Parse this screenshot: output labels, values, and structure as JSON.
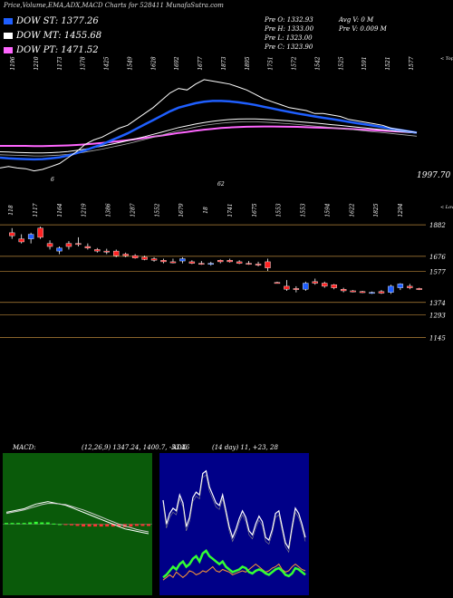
{
  "header": {
    "title": "Price,Volume,EMA,ADX,MACD Charts for 528411 MunafaSutra.com"
  },
  "legend": [
    {
      "label": "DOW ST: 1377.26",
      "color": "#1f5fff"
    },
    {
      "label": "DOW MT: 1455.68",
      "color": "#ffffff"
    },
    {
      "label": "DOW PT: 1471.52",
      "color": "#ff66ff"
    }
  ],
  "info": {
    "lines": [
      "Pre  O: 1332.93",
      "Pre  H: 1333.00",
      "Pre  L: 1323.00",
      "Pre  C: 1323.90"
    ],
    "lines2": [
      "Avg V: 0  M",
      "Pre  V: 0.009 M"
    ]
  },
  "colors": {
    "up": "#1f5fff",
    "down": "#ff2222",
    "ema_short": "#1f5fff",
    "ema_mid": "#ffffff",
    "ema_long": "#ff66ff",
    "grid": "#b8863b",
    "macd_bg": "#0a5a0a",
    "adx_bg": "#000088",
    "adx_plus": "#33ff33",
    "adx_minus": "#ff9933"
  },
  "chart_data": [
    {
      "type": "line",
      "name": "price-ema",
      "top_labels": [
        "1196",
        "1210",
        "1173",
        "1378",
        "1425",
        "1549",
        "1628",
        "1692",
        "1677",
        "1873",
        "1895",
        "1751",
        "1572",
        "1542",
        "1525",
        "1591",
        "1521",
        "1577"
      ],
      "bottom_labels": [
        "118",
        "1117",
        "1164",
        "1219",
        "1386",
        "1287",
        "1552",
        "1679",
        "18",
        "1741",
        "1675",
        "1553",
        "1553",
        "1594",
        "1622",
        "1825",
        "1294"
      ],
      "right_label": "1997.70",
      "axis_mark_left": "6",
      "axis_mark_mid": "62",
      "axis_note_top": "< Tops",
      "axis_note_bottom": "< Lows",
      "price": [
        1190,
        1200,
        1190,
        1185,
        1170,
        1180,
        1200,
        1220,
        1260,
        1300,
        1350,
        1380,
        1400,
        1430,
        1460,
        1480,
        1520,
        1560,
        1600,
        1650,
        1700,
        1730,
        1720,
        1760,
        1790,
        1780,
        1770,
        1760,
        1740,
        1720,
        1690,
        1660,
        1640,
        1620,
        1600,
        1590,
        1580,
        1560,
        1560,
        1550,
        1540,
        1520,
        1510,
        1500,
        1490,
        1480,
        1460,
        1450,
        1440,
        1430
      ],
      "ema_short": [
        1260,
        1255,
        1252,
        1250,
        1248,
        1250,
        1255,
        1262,
        1275,
        1290,
        1310,
        1330,
        1350,
        1375,
        1400,
        1425,
        1455,
        1485,
        1515,
        1545,
        1575,
        1600,
        1615,
        1630,
        1640,
        1645,
        1645,
        1642,
        1636,
        1628,
        1618,
        1606,
        1594,
        1582,
        1571,
        1560,
        1550,
        1540,
        1531,
        1522,
        1513,
        1503,
        1494,
        1485,
        1476,
        1467,
        1457,
        1448,
        1439,
        1430
      ],
      "ema_mid": [
        1300,
        1298,
        1296,
        1294,
        1292,
        1292,
        1294,
        1297,
        1302,
        1309,
        1318,
        1328,
        1338,
        1350,
        1362,
        1375,
        1389,
        1403,
        1418,
        1433,
        1449,
        1464,
        1476,
        1488,
        1499,
        1507,
        1514,
        1519,
        1522,
        1523,
        1523,
        1521,
        1518,
        1514,
        1510,
        1505,
        1500,
        1495,
        1490,
        1484,
        1479,
        1473,
        1467,
        1461,
        1455,
        1450,
        1444,
        1438,
        1432,
        1426
      ],
      "ema_long": [
        1340,
        1340,
        1340,
        1340,
        1339,
        1339,
        1340,
        1341,
        1343,
        1346,
        1350,
        1355,
        1360,
        1366,
        1372,
        1379,
        1386,
        1394,
        1402,
        1410,
        1419,
        1428,
        1435,
        1443,
        1450,
        1456,
        1461,
        1465,
        1468,
        1470,
        1471,
        1472,
        1472,
        1471,
        1470,
        1469,
        1467,
        1465,
        1463,
        1461,
        1458,
        1455,
        1452,
        1449,
        1446,
        1443,
        1440,
        1437,
        1434,
        1431
      ],
      "ylim": [
        1100,
        1900
      ]
    },
    {
      "type": "candlestick",
      "name": "candles",
      "y_ticks": [
        "1882",
        "1676",
        "1577",
        "1374",
        "1293",
        "1145"
      ],
      "y_tick_values": [
        1882,
        1676,
        1577,
        1374,
        1293,
        1145
      ],
      "candles": [
        {
          "o": 1830,
          "h": 1860,
          "l": 1790,
          "c": 1810,
          "up": false
        },
        {
          "o": 1790,
          "h": 1820,
          "l": 1760,
          "c": 1770,
          "up": false
        },
        {
          "o": 1790,
          "h": 1830,
          "l": 1760,
          "c": 1820,
          "up": true
        },
        {
          "o": 1860,
          "h": 1870,
          "l": 1790,
          "c": 1800,
          "up": false
        },
        {
          "o": 1760,
          "h": 1780,
          "l": 1720,
          "c": 1740,
          "up": false
        },
        {
          "o": 1710,
          "h": 1740,
          "l": 1690,
          "c": 1730,
          "up": true
        },
        {
          "o": 1760,
          "h": 1775,
          "l": 1720,
          "c": 1740,
          "up": false
        },
        {
          "o": 1760,
          "h": 1800,
          "l": 1740,
          "c": 1760,
          "up": false
        },
        {
          "o": 1740,
          "h": 1760,
          "l": 1720,
          "c": 1730,
          "up": false
        },
        {
          "o": 1720,
          "h": 1730,
          "l": 1700,
          "c": 1710,
          "up": false
        },
        {
          "o": 1710,
          "h": 1725,
          "l": 1690,
          "c": 1705,
          "up": false
        },
        {
          "o": 1710,
          "h": 1720,
          "l": 1670,
          "c": 1680,
          "up": false
        },
        {
          "o": 1690,
          "h": 1700,
          "l": 1670,
          "c": 1680,
          "up": false
        },
        {
          "o": 1680,
          "h": 1690,
          "l": 1660,
          "c": 1665,
          "up": false
        },
        {
          "o": 1670,
          "h": 1680,
          "l": 1650,
          "c": 1655,
          "up": false
        },
        {
          "o": 1660,
          "h": 1670,
          "l": 1640,
          "c": 1650,
          "up": false
        },
        {
          "o": 1650,
          "h": 1660,
          "l": 1630,
          "c": 1640,
          "up": false
        },
        {
          "o": 1640,
          "h": 1660,
          "l": 1630,
          "c": 1640,
          "up": false
        },
        {
          "o": 1645,
          "h": 1670,
          "l": 1630,
          "c": 1660,
          "up": true
        },
        {
          "o": 1640,
          "h": 1650,
          "l": 1625,
          "c": 1630,
          "up": false
        },
        {
          "o": 1630,
          "h": 1645,
          "l": 1620,
          "c": 1625,
          "up": false
        },
        {
          "o": 1625,
          "h": 1640,
          "l": 1615,
          "c": 1630,
          "up": true
        },
        {
          "o": 1640,
          "h": 1655,
          "l": 1630,
          "c": 1650,
          "up": false
        },
        {
          "o": 1650,
          "h": 1660,
          "l": 1635,
          "c": 1640,
          "up": false
        },
        {
          "o": 1640,
          "h": 1650,
          "l": 1625,
          "c": 1630,
          "up": false
        },
        {
          "o": 1630,
          "h": 1645,
          "l": 1620,
          "c": 1625,
          "up": false
        },
        {
          "o": 1625,
          "h": 1640,
          "l": 1610,
          "c": 1620,
          "up": false
        },
        {
          "o": 1640,
          "h": 1660,
          "l": 1580,
          "c": 1600,
          "up": false
        },
        {
          "o": 1505,
          "h": 1510,
          "l": 1500,
          "c": 1505,
          "up": false
        },
        {
          "o": 1460,
          "h": 1520,
          "l": 1450,
          "c": 1480,
          "up": false
        },
        {
          "o": 1465,
          "h": 1480,
          "l": 1440,
          "c": 1460,
          "up": false
        },
        {
          "o": 1460,
          "h": 1510,
          "l": 1450,
          "c": 1500,
          "up": true
        },
        {
          "o": 1510,
          "h": 1530,
          "l": 1490,
          "c": 1500,
          "up": false
        },
        {
          "o": 1500,
          "h": 1510,
          "l": 1470,
          "c": 1480,
          "up": false
        },
        {
          "o": 1490,
          "h": 1495,
          "l": 1460,
          "c": 1470,
          "up": false
        },
        {
          "o": 1460,
          "h": 1470,
          "l": 1440,
          "c": 1450,
          "up": false
        },
        {
          "o": 1450,
          "h": 1455,
          "l": 1440,
          "c": 1445,
          "up": false
        },
        {
          "o": 1445,
          "h": 1450,
          "l": 1435,
          "c": 1440,
          "up": false
        },
        {
          "o": 1440,
          "h": 1445,
          "l": 1430,
          "c": 1440,
          "up": true
        },
        {
          "o": 1445,
          "h": 1455,
          "l": 1430,
          "c": 1435,
          "up": false
        },
        {
          "o": 1440,
          "h": 1490,
          "l": 1430,
          "c": 1480,
          "up": true
        },
        {
          "o": 1470,
          "h": 1500,
          "l": 1455,
          "c": 1495,
          "up": true
        },
        {
          "o": 1480,
          "h": 1495,
          "l": 1460,
          "c": 1470,
          "up": false
        },
        {
          "o": 1465,
          "h": 1470,
          "l": 1455,
          "c": 1462,
          "up": false
        }
      ],
      "ylim": [
        1100,
        1930
      ]
    },
    {
      "type": "line",
      "name": "macd",
      "label": "MACD:",
      "params": "(12,26,9) 1347.24,  1400.7, -53.46",
      "macd": [
        20,
        22,
        24,
        26,
        30,
        34,
        36,
        38,
        36,
        34,
        32,
        28,
        24,
        20,
        16,
        12,
        8,
        4,
        0,
        -4,
        -8,
        -10,
        -12,
        -14,
        -16
      ],
      "signal": [
        18,
        20,
        22,
        24,
        27,
        30,
        33,
        35,
        35,
        34,
        33,
        30,
        27,
        24,
        20,
        16,
        12,
        8,
        4,
        0,
        -3,
        -6,
        -9,
        -11,
        -13
      ],
      "hist": [
        2,
        2,
        2,
        2,
        3,
        4,
        3,
        3,
        1,
        0,
        -1,
        -2,
        -3,
        -4,
        -4,
        -4,
        -4,
        -4,
        -4,
        -4,
        -5,
        -4,
        -3,
        -3,
        -3
      ],
      "ylim": [
        -60,
        60
      ]
    },
    {
      "type": "line",
      "name": "adx",
      "label": "ADX",
      "params": "(14  day) 11,  +23,  28",
      "adx": [
        68,
        50,
        58,
        62,
        60,
        72,
        66,
        48,
        55,
        70,
        74,
        72,
        88,
        90,
        78,
        72,
        66,
        64,
        72,
        60,
        48,
        40,
        46,
        54,
        60,
        55,
        45,
        42,
        50,
        56,
        52,
        40,
        38,
        46,
        58,
        60,
        48,
        36,
        32,
        48,
        62,
        58,
        50,
        40
      ],
      "plus_di": [
        10,
        12,
        15,
        18,
        16,
        20,
        22,
        18,
        20,
        24,
        26,
        22,
        28,
        30,
        26,
        24,
        22,
        20,
        22,
        18,
        16,
        14,
        15,
        16,
        18,
        17,
        14,
        13,
        15,
        16,
        15,
        13,
        12,
        14,
        16,
        17,
        15,
        12,
        11,
        13,
        17,
        16,
        14,
        12
      ],
      "minus_di": [
        8,
        10,
        12,
        10,
        14,
        12,
        10,
        12,
        15,
        14,
        12,
        13,
        15,
        14,
        16,
        18,
        15,
        14,
        16,
        15,
        14,
        12,
        13,
        14,
        15,
        14,
        16,
        18,
        20,
        18,
        16,
        14,
        15,
        17,
        18,
        20,
        16,
        14,
        15,
        18,
        20,
        18,
        16,
        15
      ],
      "ylim": [
        0,
        100
      ]
    }
  ]
}
